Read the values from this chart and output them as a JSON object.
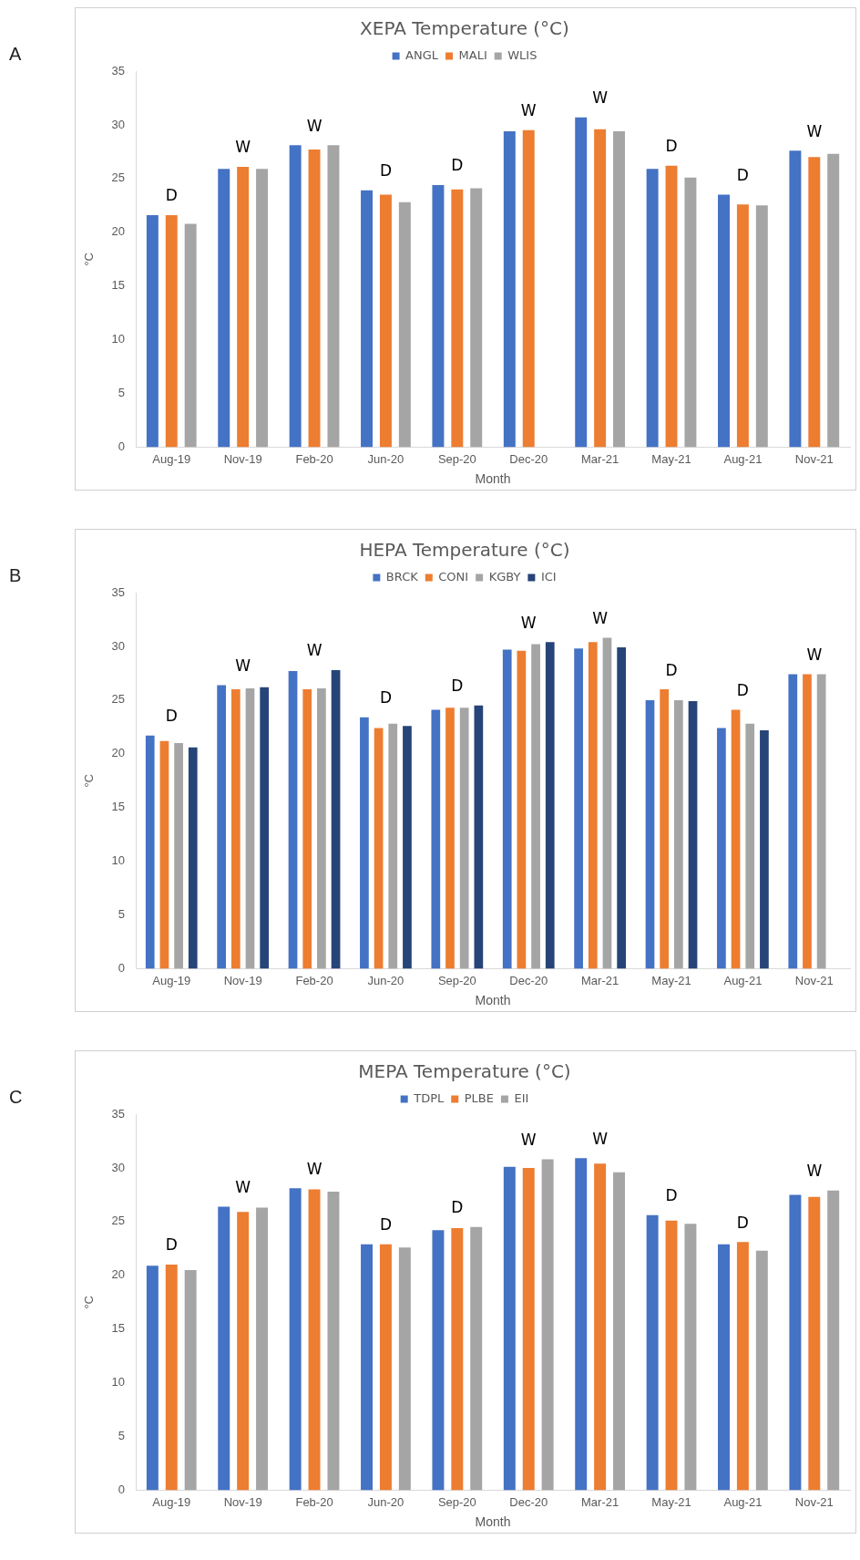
{
  "chart_data": [
    {
      "type": "bar",
      "title": "XEPA Temperature (°C)",
      "xlabel": "Month",
      "ylabel": "°C",
      "categories": [
        "Aug-19",
        "Nov-19",
        "Feb-20",
        "Jun-20",
        "Sep-20",
        "Dec-20",
        "Mar-21",
        "May-21",
        "Aug-21",
        "Nov-21"
      ],
      "series": [
        {
          "name": "ANGL",
          "color": "#4472c4",
          "values": [
            21.6,
            25.9,
            28.1,
            23.9,
            24.4,
            29.4,
            30.7,
            25.9,
            23.5,
            27.6
          ]
        },
        {
          "name": "MALI",
          "color": "#ed7d31",
          "values": [
            21.6,
            26.1,
            27.7,
            23.5,
            24.0,
            29.5,
            29.6,
            26.2,
            22.6,
            27.0
          ]
        },
        {
          "name": "WLIS",
          "color": "#a5a5a5",
          "values": [
            20.8,
            25.9,
            28.1,
            22.8,
            24.1,
            null,
            29.4,
            25.1,
            22.5,
            27.3
          ]
        }
      ],
      "ylim": [
        0,
        35
      ],
      "yticks": [
        0,
        5,
        10,
        15,
        20,
        25,
        30,
        35
      ],
      "grid": false,
      "legend": "top",
      "annotations": [
        "A",
        "D",
        "W",
        "W",
        "D",
        "D",
        "W",
        "W",
        "D",
        "D",
        "W"
      ]
    },
    {
      "type": "bar",
      "title": "HEPA Temperature (°C)",
      "xlabel": "Month",
      "ylabel": "°C",
      "categories": [
        "Aug-19",
        "Nov-19",
        "Feb-20",
        "Jun-20",
        "Sep-20",
        "Dec-20",
        "Mar-21",
        "May-21",
        "Aug-21",
        "Nov-21"
      ],
      "series": [
        {
          "name": "BRCK",
          "color": "#4472c4",
          "values": [
            21.7,
            26.4,
            27.7,
            23.4,
            24.1,
            29.7,
            29.8,
            25.0,
            22.4,
            27.4
          ]
        },
        {
          "name": "CONI",
          "color": "#ed7d31",
          "values": [
            21.2,
            26.0,
            26.0,
            22.4,
            24.3,
            29.6,
            30.4,
            26.0,
            24.1,
            27.4
          ]
        },
        {
          "name": "KGBY",
          "color": "#a5a5a5",
          "values": [
            21.0,
            26.1,
            26.1,
            22.8,
            24.3,
            30.2,
            30.8,
            25.0,
            22.8,
            27.4
          ]
        },
        {
          "name": "ICI",
          "color": "#264478",
          "values": [
            20.6,
            26.2,
            27.8,
            22.6,
            24.5,
            30.4,
            29.9,
            24.9,
            22.2,
            null
          ]
        }
      ],
      "ylim": [
        0,
        35
      ],
      "yticks": [
        0,
        5,
        10,
        15,
        20,
        25,
        30,
        35
      ],
      "grid": false,
      "legend": "top",
      "annotations": [
        "B",
        "D",
        "W",
        "W",
        "D",
        "D",
        "W",
        "W",
        "D",
        "D",
        "W"
      ]
    },
    {
      "type": "bar",
      "title": "MEPA Temperature (°C)",
      "xlabel": "Month",
      "ylabel": "°C",
      "categories": [
        "Aug-19",
        "Nov-19",
        "Feb-20",
        "Jun-20",
        "Sep-20",
        "Dec-20",
        "Mar-21",
        "May-21",
        "Aug-21",
        "Nov-21"
      ],
      "series": [
        {
          "name": "TDPL",
          "color": "#4472c4",
          "values": [
            20.9,
            26.4,
            28.1,
            22.9,
            24.2,
            30.1,
            30.9,
            25.6,
            22.9,
            27.5
          ]
        },
        {
          "name": "PLBE",
          "color": "#ed7d31",
          "values": [
            21.0,
            25.9,
            28.0,
            22.9,
            24.4,
            30.0,
            30.4,
            25.1,
            23.1,
            27.3
          ]
        },
        {
          "name": "EII",
          "color": "#a5a5a5",
          "values": [
            20.5,
            26.3,
            27.8,
            22.6,
            24.5,
            30.8,
            29.6,
            24.8,
            22.3,
            27.9
          ]
        }
      ],
      "ylim": [
        0,
        35
      ],
      "yticks": [
        0,
        5,
        10,
        15,
        20,
        25,
        30,
        35
      ],
      "grid": false,
      "legend": "top",
      "annotations": [
        "C",
        "D",
        "W",
        "W",
        "D",
        "D",
        "W",
        "W",
        "D",
        "D",
        "W"
      ]
    }
  ]
}
